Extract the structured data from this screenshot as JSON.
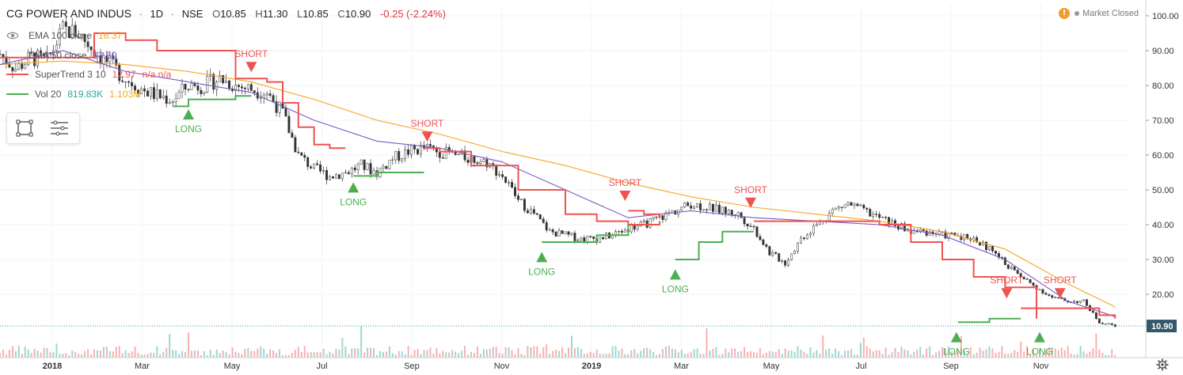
{
  "header": {
    "symbol": "CG POWER AND INDUS",
    "interval": "1D",
    "exchange": "NSE",
    "o_label": "O",
    "o_value": "10.85",
    "h_label": "H",
    "h_value": "11.30",
    "l_label": "L",
    "l_value": "10.85",
    "c_label": "C",
    "c_value": "10.90",
    "change": "-0.25 (-2.24%)"
  },
  "status": {
    "icon": "warning-icon",
    "text": "Market Closed"
  },
  "legend": [
    {
      "name": "EMA 100 close",
      "value": "16.37",
      "color": "#f5a623",
      "extra": ""
    },
    {
      "name": "EMA 50 close",
      "value": "13.60",
      "color": "#7e57c2",
      "extra": ""
    },
    {
      "name": "SuperTrend 3 10",
      "value": "12.97",
      "color": "#ef5350",
      "extra": "n/a  n/a"
    },
    {
      "name": "Vol 20",
      "value": "819.83K",
      "color": "#26a69a",
      "extra": "1.103M"
    }
  ],
  "toolbox": {
    "icons": [
      "rectangle-select-icon",
      "list-menu-icon"
    ]
  },
  "settings_icon": "gear-icon",
  "chart_data": {
    "type": "candlestick",
    "price_axis": {
      "ticks": [
        100,
        90,
        80,
        70,
        60,
        50,
        40,
        30,
        20
      ],
      "tick_labels": [
        "100.00",
        "90.00",
        "80.00",
        "70.00",
        "60.00",
        "50.00",
        "40.00",
        "30.00",
        "20.00"
      ],
      "range": [
        8,
        103
      ],
      "last_price": 10.9,
      "last_price_label": "10.90"
    },
    "time_axis": {
      "labels": [
        "2018",
        "Mar",
        "May",
        "Jul",
        "Sep",
        "Nov",
        "2019",
        "Mar",
        "May",
        "Jul",
        "Sep",
        "Nov"
      ],
      "bold": [
        true,
        false,
        false,
        false,
        false,
        false,
        true,
        false,
        false,
        false,
        false,
        false
      ]
    },
    "price_series": {
      "name": "",
      "t": [
        0,
        10,
        20,
        30,
        40,
        50,
        60,
        70,
        80,
        90,
        100,
        110,
        120,
        130,
        140,
        150,
        160,
        170,
        180,
        190,
        200,
        210,
        220,
        230,
        240,
        250,
        260,
        270,
        280,
        290,
        300,
        310,
        320,
        330,
        340,
        350,
        360,
        370,
        380,
        390,
        400,
        410,
        420,
        430,
        440,
        450,
        460,
        470,
        480,
        490,
        500,
        510,
        520,
        530,
        540,
        550,
        560,
        570,
        580,
        590,
        600,
        610,
        620,
        630,
        640,
        650,
        660,
        670,
        680,
        690,
        700,
        710
      ],
      "close": [
        89,
        85,
        88,
        87,
        96,
        95,
        90,
        86,
        82,
        79,
        77,
        76,
        80,
        80,
        82,
        80,
        79,
        78,
        72,
        60,
        56,
        54,
        55,
        57,
        55,
        59,
        61,
        62,
        61,
        60,
        59,
        58,
        54,
        47,
        43,
        38,
        37,
        36,
        36,
        37,
        39,
        40,
        42,
        44,
        46,
        45,
        44,
        43,
        39,
        32,
        29,
        36,
        40,
        44,
        46,
        44,
        42,
        40,
        38,
        38,
        37,
        37,
        36,
        33,
        29,
        25,
        22,
        19,
        18,
        18,
        12,
        11
      ]
    },
    "ema100": {
      "name": "EMA 100 close",
      "t": [
        0,
        40,
        80,
        120,
        160,
        200,
        240,
        280,
        320,
        360,
        400,
        440,
        480,
        520,
        560,
        600,
        640,
        680,
        710
      ],
      "values": [
        86,
        87,
        86,
        84,
        81,
        76,
        70,
        66,
        61,
        57,
        52,
        48,
        45,
        43,
        41,
        38,
        33,
        23,
        16.37
      ]
    },
    "ema50": {
      "name": "EMA 50 close",
      "t": [
        0,
        40,
        80,
        120,
        160,
        200,
        240,
        280,
        320,
        360,
        400,
        440,
        480,
        520,
        560,
        600,
        640,
        680,
        710
      ],
      "values": [
        86,
        90,
        84,
        81,
        78,
        70,
        64,
        62,
        58,
        50,
        42,
        44,
        42,
        41,
        40,
        37,
        30,
        18,
        13.6
      ]
    },
    "supertrend": {
      "name": "SuperTrend 3 10",
      "up_color": "#4caf50",
      "down_color": "#ef5350",
      "segments": [
        {
          "dir": "down",
          "t": [
            0,
            60,
            80,
            100,
            150,
            170,
            180,
            190,
            200,
            210,
            220
          ],
          "values": [
            88,
            95,
            93,
            90,
            82,
            81,
            75,
            68,
            63,
            62,
            62
          ]
        },
        {
          "dir": "up",
          "t": [
            110,
            120,
            150,
            160
          ],
          "values": [
            74,
            76,
            77,
            77
          ]
        },
        {
          "dir": "up",
          "t": [
            225,
            240,
            270
          ],
          "values": [
            54,
            55,
            55
          ]
        },
        {
          "dir": "down",
          "t": [
            270,
            280,
            300,
            330,
            360,
            380,
            400,
            420
          ],
          "values": [
            62,
            61,
            57,
            50,
            43,
            41,
            40,
            41
          ]
        },
        {
          "dir": "up",
          "t": [
            345,
            360,
            380,
            400
          ],
          "values": [
            35,
            35,
            37,
            40
          ]
        },
        {
          "dir": "down",
          "t": [
            400,
            410,
            420
          ],
          "values": [
            44,
            43,
            42
          ]
        },
        {
          "dir": "up",
          "t": [
            430,
            445,
            460,
            480
          ],
          "values": [
            30,
            35,
            38,
            38
          ]
        },
        {
          "dir": "down",
          "t": [
            480,
            500,
            530,
            560,
            580,
            600,
            620,
            640,
            660
          ],
          "values": [
            41,
            41,
            41,
            40,
            35,
            30,
            25,
            22,
            13
          ]
        },
        {
          "dir": "up",
          "t": [
            610,
            630,
            650
          ],
          "values": [
            12,
            13,
            13
          ]
        },
        {
          "dir": "down",
          "t": [
            650,
            680,
            700,
            710
          ],
          "values": [
            16,
            16,
            14,
            13
          ]
        }
      ]
    },
    "signals": [
      {
        "type": "SHORT",
        "label": "SHORT",
        "t": 160,
        "price": 82
      },
      {
        "type": "LONG",
        "label": "LONG",
        "t": 120,
        "price": 75
      },
      {
        "type": "LONG",
        "label": "LONG",
        "t": 225,
        "price": 54
      },
      {
        "type": "SHORT",
        "label": "SHORT",
        "t": 272,
        "price": 62
      },
      {
        "type": "LONG",
        "label": "LONG",
        "t": 345,
        "price": 34
      },
      {
        "type": "SHORT",
        "label": "SHORT",
        "t": 398,
        "price": 45
      },
      {
        "type": "LONG",
        "label": "LONG",
        "t": 430,
        "price": 29
      },
      {
        "type": "SHORT",
        "label": "SHORT",
        "t": 478,
        "price": 43
      },
      {
        "type": "LONG",
        "label": "LONG",
        "t": 609,
        "price": 11
      },
      {
        "type": "SHORT",
        "label": "SHORT",
        "t": 641,
        "price": 17
      },
      {
        "type": "LONG",
        "label": "LONG",
        "t": 662,
        "price": 11
      },
      {
        "type": "SHORT",
        "label": "SHORT",
        "t": 675,
        "price": 17
      }
    ]
  }
}
